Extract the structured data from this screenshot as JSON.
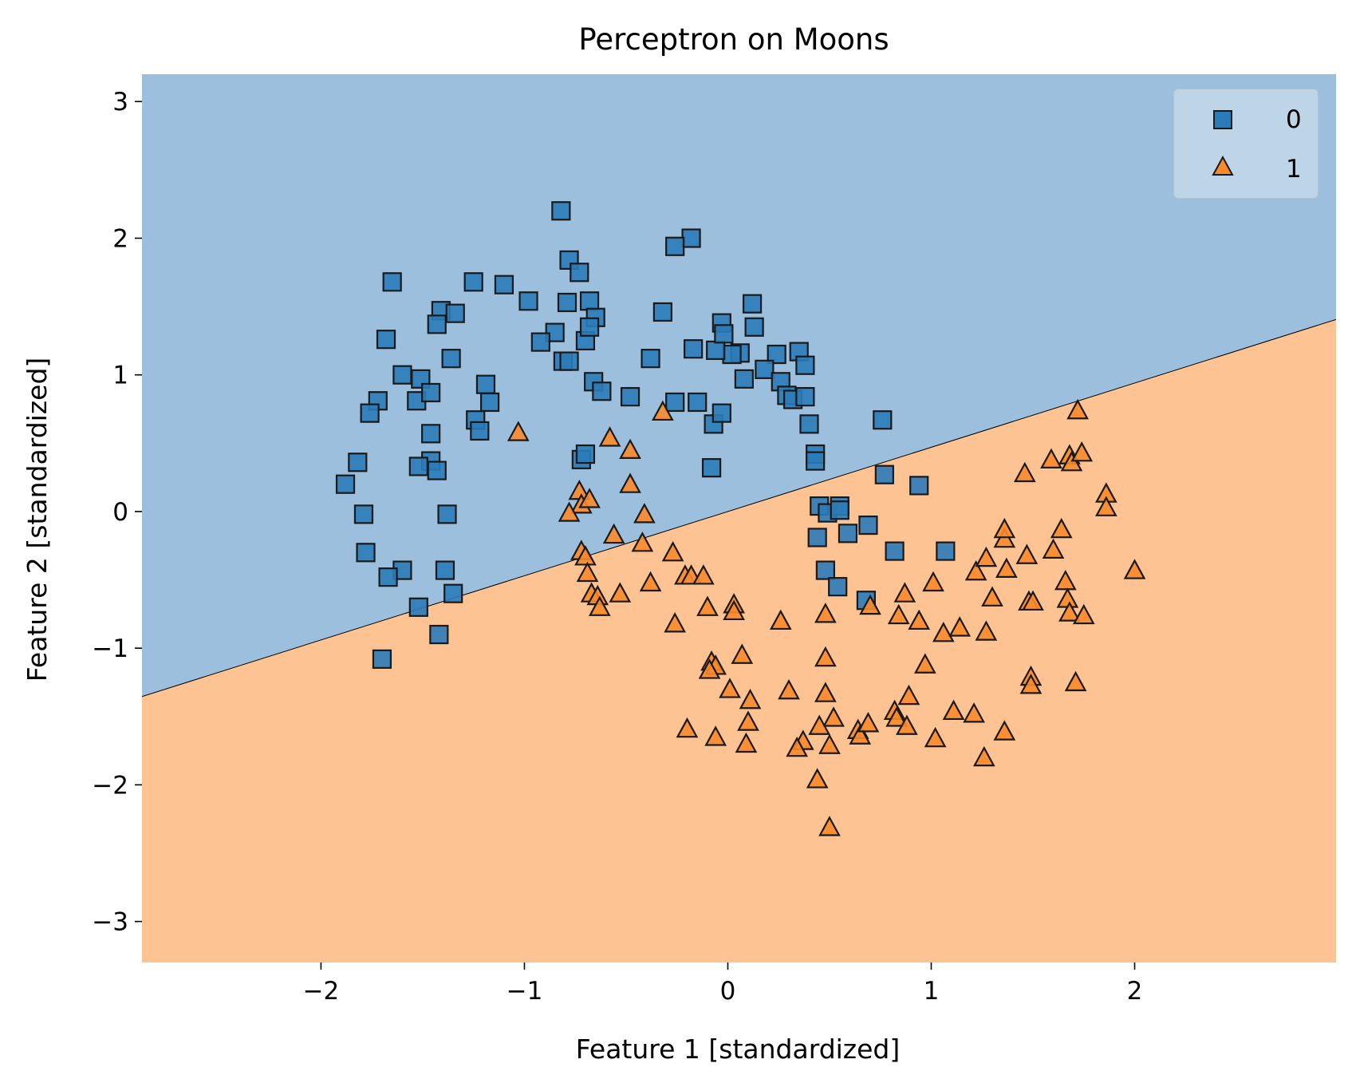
{
  "chart_data": {
    "type": "scatter",
    "title": "Perceptron on Moons",
    "xlabel": "Feature 1 [standardized]",
    "ylabel": "Feature 2 [standardized]",
    "xlim": [
      -2.88,
      2.99
    ],
    "ylim": [
      -3.3,
      3.2
    ],
    "xticks": [
      -2,
      -1,
      0,
      1,
      2
    ],
    "yticks": [
      -3,
      -2,
      -1,
      0,
      1,
      2,
      3
    ],
    "xtick_labels": [
      "−2",
      "−1",
      "0",
      "1",
      "2"
    ],
    "ytick_labels": [
      "−3",
      "−2",
      "−1",
      "0",
      "1",
      "2",
      "3"
    ],
    "grid": false,
    "legend_position": "top-right",
    "decision_boundary": {
      "slope": 0.47,
      "intercept": 0.0,
      "above_class": "0",
      "below_class": "1"
    },
    "colors": {
      "region_0": "#9bbfdc",
      "region_1": "#fdc393",
      "marker_0": "#2b7bb9",
      "marker_1": "#f98a2c",
      "edge": "#1a1a1a"
    },
    "series": [
      {
        "name": "0",
        "marker": "square",
        "points": [
          [
            -0.82,
            2.2
          ],
          [
            -0.18,
            2.0
          ],
          [
            -0.78,
            1.84
          ],
          [
            -0.73,
            1.75
          ],
          [
            -1.65,
            1.68
          ],
          [
            -1.25,
            1.68
          ],
          [
            -1.1,
            1.66
          ],
          [
            -0.98,
            1.54
          ],
          [
            -0.79,
            1.53
          ],
          [
            -0.68,
            1.54
          ],
          [
            -0.65,
            1.42
          ],
          [
            -0.32,
            1.46
          ],
          [
            -0.26,
            1.94
          ],
          [
            0.12,
            1.52
          ],
          [
            0.13,
            1.35
          ],
          [
            0.06,
            1.16
          ],
          [
            0.02,
            1.15
          ],
          [
            0.24,
            1.15
          ],
          [
            0.35,
            1.17
          ],
          [
            0.38,
            1.07
          ],
          [
            -1.41,
            1.47
          ],
          [
            -1.34,
            1.45
          ],
          [
            -1.43,
            1.37
          ],
          [
            -1.36,
            1.12
          ],
          [
            -1.68,
            1.26
          ],
          [
            -0.85,
            1.31
          ],
          [
            -0.92,
            1.24
          ],
          [
            -0.81,
            1.1
          ],
          [
            -0.78,
            1.1
          ],
          [
            -0.7,
            1.25
          ],
          [
            -0.68,
            1.35
          ],
          [
            -0.66,
            0.95
          ],
          [
            -0.62,
            0.88
          ],
          [
            -0.48,
            0.84
          ],
          [
            -0.38,
            1.12
          ],
          [
            -0.17,
            1.19
          ],
          [
            -0.15,
            0.8
          ],
          [
            -0.26,
            0.8
          ],
          [
            -0.06,
            1.18
          ],
          [
            -0.03,
            1.38
          ],
          [
            -0.02,
            1.3
          ],
          [
            0.08,
            0.97
          ],
          [
            0.18,
            1.04
          ],
          [
            0.26,
            0.95
          ],
          [
            0.29,
            0.85
          ],
          [
            0.32,
            0.82
          ],
          [
            -1.6,
            1.0
          ],
          [
            -1.51,
            0.97
          ],
          [
            -1.53,
            0.81
          ],
          [
            -1.46,
            0.87
          ],
          [
            -1.72,
            0.81
          ],
          [
            -1.76,
            0.72
          ],
          [
            -1.19,
            0.93
          ],
          [
            -1.17,
            0.8
          ],
          [
            -1.24,
            0.67
          ],
          [
            -1.22,
            0.59
          ],
          [
            -1.46,
            0.57
          ],
          [
            -1.46,
            0.37
          ],
          [
            -1.43,
            0.3
          ],
          [
            -1.52,
            0.33
          ],
          [
            -0.72,
            0.38
          ],
          [
            -0.7,
            0.42
          ],
          [
            -0.07,
            0.64
          ],
          [
            -0.03,
            0.72
          ],
          [
            -0.08,
            0.32
          ],
          [
            0.38,
            0.84
          ],
          [
            0.4,
            0.64
          ],
          [
            0.43,
            0.42
          ],
          [
            0.43,
            0.37
          ],
          [
            0.76,
            0.67
          ],
          [
            0.77,
            0.27
          ],
          [
            0.94,
            0.19
          ],
          [
            -1.88,
            0.2
          ],
          [
            -1.82,
            0.36
          ],
          [
            -1.79,
            -0.02
          ],
          [
            -1.38,
            -0.02
          ],
          [
            -1.78,
            -0.3
          ],
          [
            -1.6,
            -0.43
          ],
          [
            -1.67,
            -0.48
          ],
          [
            -1.52,
            -0.7
          ],
          [
            -1.39,
            -0.43
          ],
          [
            -1.35,
            -0.6
          ],
          [
            -1.42,
            -0.9
          ],
          [
            -1.7,
            -1.08
          ],
          [
            0.45,
            0.04
          ],
          [
            0.49,
            -0.01
          ],
          [
            0.55,
            0.04
          ],
          [
            0.55,
            0.01
          ],
          [
            0.59,
            -0.16
          ],
          [
            0.69,
            -0.1
          ],
          [
            0.44,
            -0.19
          ],
          [
            0.48,
            -0.43
          ],
          [
            0.54,
            -0.55
          ],
          [
            0.68,
            -0.65
          ],
          [
            0.82,
            -0.29
          ],
          [
            1.07,
            -0.29
          ]
        ]
      },
      {
        "name": "1",
        "marker": "triangle",
        "points": [
          [
            -1.03,
            0.58
          ],
          [
            -0.58,
            0.54
          ],
          [
            -0.48,
            0.45
          ],
          [
            -0.32,
            0.73
          ],
          [
            -0.48,
            0.2
          ],
          [
            -0.73,
            0.15
          ],
          [
            -0.72,
            0.05
          ],
          [
            -0.68,
            0.09
          ],
          [
            -0.78,
            -0.01
          ],
          [
            -0.41,
            -0.02
          ],
          [
            -0.56,
            -0.17
          ],
          [
            -0.42,
            -0.23
          ],
          [
            -0.72,
            -0.29
          ],
          [
            -0.7,
            -0.33
          ],
          [
            -0.69,
            -0.45
          ],
          [
            -0.67,
            -0.6
          ],
          [
            -0.64,
            -0.62
          ],
          [
            -0.63,
            -0.7
          ],
          [
            -0.53,
            -0.6
          ],
          [
            -0.38,
            -0.52
          ],
          [
            -0.27,
            -0.3
          ],
          [
            -0.21,
            -0.47
          ],
          [
            -0.18,
            -0.47
          ],
          [
            -0.12,
            -0.47
          ],
          [
            -0.1,
            -0.7
          ],
          [
            0.03,
            -0.68
          ],
          [
            0.03,
            -0.73
          ],
          [
            -0.26,
            -0.82
          ],
          [
            -0.08,
            -1.1
          ],
          [
            -0.06,
            -1.13
          ],
          [
            -0.09,
            -1.16
          ],
          [
            0.07,
            -1.05
          ],
          [
            0.01,
            -1.3
          ],
          [
            0.11,
            -1.38
          ],
          [
            0.1,
            -1.54
          ],
          [
            0.09,
            -1.7
          ],
          [
            -0.2,
            -1.59
          ],
          [
            -0.06,
            -1.65
          ],
          [
            0.26,
            -0.8
          ],
          [
            0.3,
            -1.31
          ],
          [
            0.48,
            -0.75
          ],
          [
            0.48,
            -1.07
          ],
          [
            0.48,
            -1.33
          ],
          [
            0.52,
            -1.51
          ],
          [
            0.45,
            -1.57
          ],
          [
            0.37,
            -1.68
          ],
          [
            0.34,
            -1.73
          ],
          [
            0.5,
            -1.71
          ],
          [
            0.44,
            -1.96
          ],
          [
            0.5,
            -2.31
          ],
          [
            0.64,
            -1.6
          ],
          [
            0.65,
            -1.64
          ],
          [
            0.69,
            -1.55
          ],
          [
            0.7,
            -0.69
          ],
          [
            0.84,
            -0.76
          ],
          [
            0.87,
            -0.6
          ],
          [
            0.94,
            -0.8
          ],
          [
            0.97,
            -1.12
          ],
          [
            0.89,
            -1.35
          ],
          [
            0.82,
            -1.46
          ],
          [
            0.83,
            -1.51
          ],
          [
            0.88,
            -1.57
          ],
          [
            1.02,
            -1.66
          ],
          [
            1.01,
            -0.52
          ],
          [
            1.06,
            -0.89
          ],
          [
            1.14,
            -0.85
          ],
          [
            1.11,
            -1.46
          ],
          [
            1.21,
            -1.48
          ],
          [
            1.26,
            -1.8
          ],
          [
            1.36,
            -1.61
          ],
          [
            1.27,
            -0.88
          ],
          [
            1.22,
            -0.44
          ],
          [
            1.27,
            -0.34
          ],
          [
            1.3,
            -0.63
          ],
          [
            1.36,
            -0.2
          ],
          [
            1.36,
            -0.13
          ],
          [
            1.37,
            -0.42
          ],
          [
            1.47,
            -0.32
          ],
          [
            1.48,
            -0.66
          ],
          [
            1.5,
            -0.66
          ],
          [
            1.49,
            -1.21
          ],
          [
            1.49,
            -1.27
          ],
          [
            1.46,
            0.28
          ],
          [
            1.59,
            0.38
          ],
          [
            1.68,
            0.41
          ],
          [
            1.69,
            0.36
          ],
          [
            1.74,
            0.43
          ],
          [
            1.72,
            0.74
          ],
          [
            1.64,
            -0.13
          ],
          [
            1.6,
            -0.28
          ],
          [
            1.66,
            -0.51
          ],
          [
            1.67,
            -0.64
          ],
          [
            1.68,
            -0.74
          ],
          [
            1.75,
            -0.76
          ],
          [
            1.71,
            -1.25
          ],
          [
            1.86,
            0.13
          ],
          [
            1.86,
            0.03
          ],
          [
            2.0,
            -0.43
          ]
        ]
      }
    ]
  }
}
